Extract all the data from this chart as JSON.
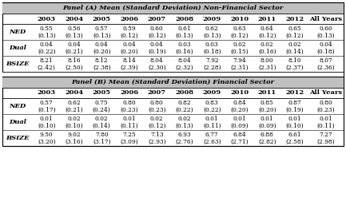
{
  "panel_a_title": "Panel (A) Mean (Standard Deviation) Non-Financial Sector",
  "panel_b_title": "Panel (B) Mean (Standard Deviation) Financial Sector",
  "columns": [
    "2003",
    "2004",
    "2005",
    "2006",
    "2007",
    "2008",
    "2009",
    "2010",
    "2011",
    "2012",
    "All Years"
  ],
  "panel_a": {
    "NED": {
      "mean": [
        "0.55",
        "0.56",
        "0.57",
        "0.59",
        "0.60",
        "0.61",
        "0.62",
        "0.63",
        "0.64",
        "0.65",
        "0.60"
      ],
      "sd": [
        "(0.13)",
        "(0.13)",
        "(0.13)",
        "(0.12)",
        "(0.12)",
        "(0.13)",
        "(0.13)",
        "(0.12)",
        "(0.12)",
        "(0.12)",
        "(0.13)"
      ]
    },
    "Dual": {
      "mean": [
        "0.04",
        "0.04",
        "0.04",
        "0.04",
        "0.04",
        "0.03",
        "0.03",
        "0.02",
        "0.02",
        "0.02",
        "0.04"
      ],
      "sd": [
        "(0.22)",
        "(0.21)",
        "(0.20)",
        "(0.20)",
        "(0.19)",
        "(0.16)",
        "(0.18)",
        "(0.15)",
        "(0.16)",
        "(0.14)",
        "(0.18)"
      ]
    },
    "BSIZE": {
      "mean": [
        "8.21",
        "8.16",
        "8.12",
        "8.14",
        "8.04",
        "8.04",
        "7.92",
        "7.94",
        "8.00",
        "8.10",
        "8.07"
      ],
      "sd": [
        "(2.42)",
        "(2.50)",
        "(2.38)",
        "(2.39)",
        "(2.30)",
        "(2.32)",
        "(2.28)",
        "(2.31)",
        "(2.31)",
        "(2.37)",
        "(2.36)"
      ]
    }
  },
  "panel_b": {
    "NED": {
      "mean": [
        "0.57",
        "0.62",
        "0.75",
        "0.80",
        "0.80",
        "0.82",
        "0.83",
        "0.84",
        "0.85",
        "0.87",
        "0.80"
      ],
      "sd": [
        "(0.17)",
        "(0.21)",
        "(0.24)",
        "(0.23)",
        "(0.23)",
        "(0.22)",
        "(0.22)",
        "(0.20)",
        "(0.20)",
        "(0.19)",
        "(0.23)"
      ]
    },
    "Dual": {
      "mean": [
        "0.01",
        "0.02",
        "0.02",
        "0.01",
        "0.02",
        "0.02",
        "0.01",
        "0.01",
        "0.01",
        "0.01",
        "0.01"
      ],
      "sd": [
        "(0.10)",
        "(0.10)",
        "(0.14)",
        "(0.11)",
        "(0.12)",
        "(0.13)",
        "(0.11)",
        "(0.09)",
        "(0.09)",
        "(0.10)",
        "(0.11)"
      ]
    },
    "BSIZE": {
      "mean": [
        "9.50",
        "9.02",
        "7.80",
        "7.25",
        "7.13",
        "6.93",
        "6.77",
        "6.84",
        "6.88",
        "6.61",
        "7.27"
      ],
      "sd": [
        "(3.20)",
        "(3.16)",
        "(3.17)",
        "(3.09)",
        "(2.93)",
        "(2.76)",
        "(2.63)",
        "(2.71)",
        "(2.82)",
        "(2.58)",
        "(2.98)"
      ]
    }
  },
  "panel_header_bg": "#c0c0c0",
  "col_header_bg": "#ffffff",
  "row_labels": [
    "NED",
    "Dual",
    "BSIZE"
  ]
}
